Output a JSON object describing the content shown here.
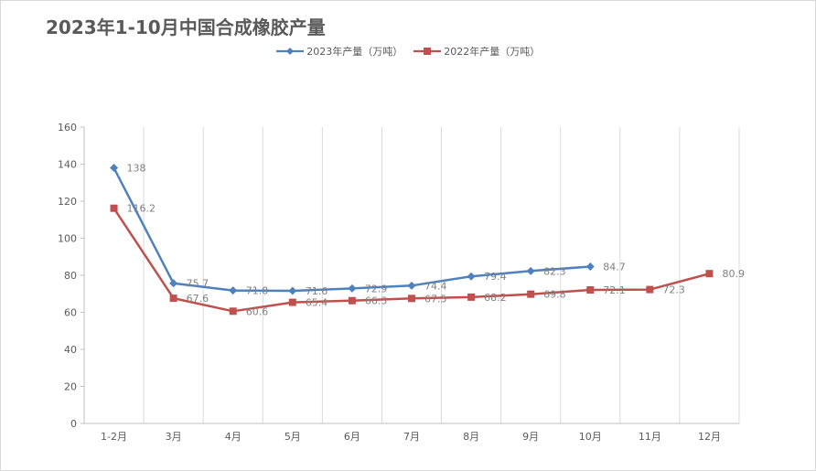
{
  "chart_data": {
    "type": "line",
    "title": "2023年1-10月中国合成橡胶产量",
    "categories": [
      "1-2月",
      "3月",
      "4月",
      "5月",
      "6月",
      "7月",
      "8月",
      "9月",
      "10月",
      "11月",
      "12月"
    ],
    "series": [
      {
        "name": "2023年产量（万吨）",
        "color": "#4f81bd",
        "marker": "diamond",
        "values": [
          138,
          75.7,
          71.8,
          71.6,
          72.9,
          74.4,
          79.4,
          82.3,
          84.7,
          null,
          null
        ],
        "labels": [
          "138",
          "75.7",
          "71.8",
          "71.6",
          "72.9",
          "74.4",
          "79.4",
          "82.3",
          "84.7",
          null,
          null
        ]
      },
      {
        "name": "2022年产量（万吨）",
        "color": "#c0504d",
        "marker": "square",
        "values": [
          116.2,
          67.6,
          60.6,
          65.4,
          66.3,
          67.5,
          68.2,
          69.8,
          72.1,
          72.3,
          80.9
        ],
        "labels": [
          "116.2",
          "67.6",
          "60.6",
          "65.4",
          "66.3",
          "67.5",
          "68.2",
          "69.8",
          "72.1",
          "72.3",
          "80.9"
        ]
      }
    ],
    "ylim": [
      0,
      160
    ],
    "yticks": [
      "0",
      "20",
      "40",
      "60",
      "80",
      "100",
      "120",
      "140",
      "160"
    ],
    "grid": "vertical",
    "legend": "top-center"
  }
}
